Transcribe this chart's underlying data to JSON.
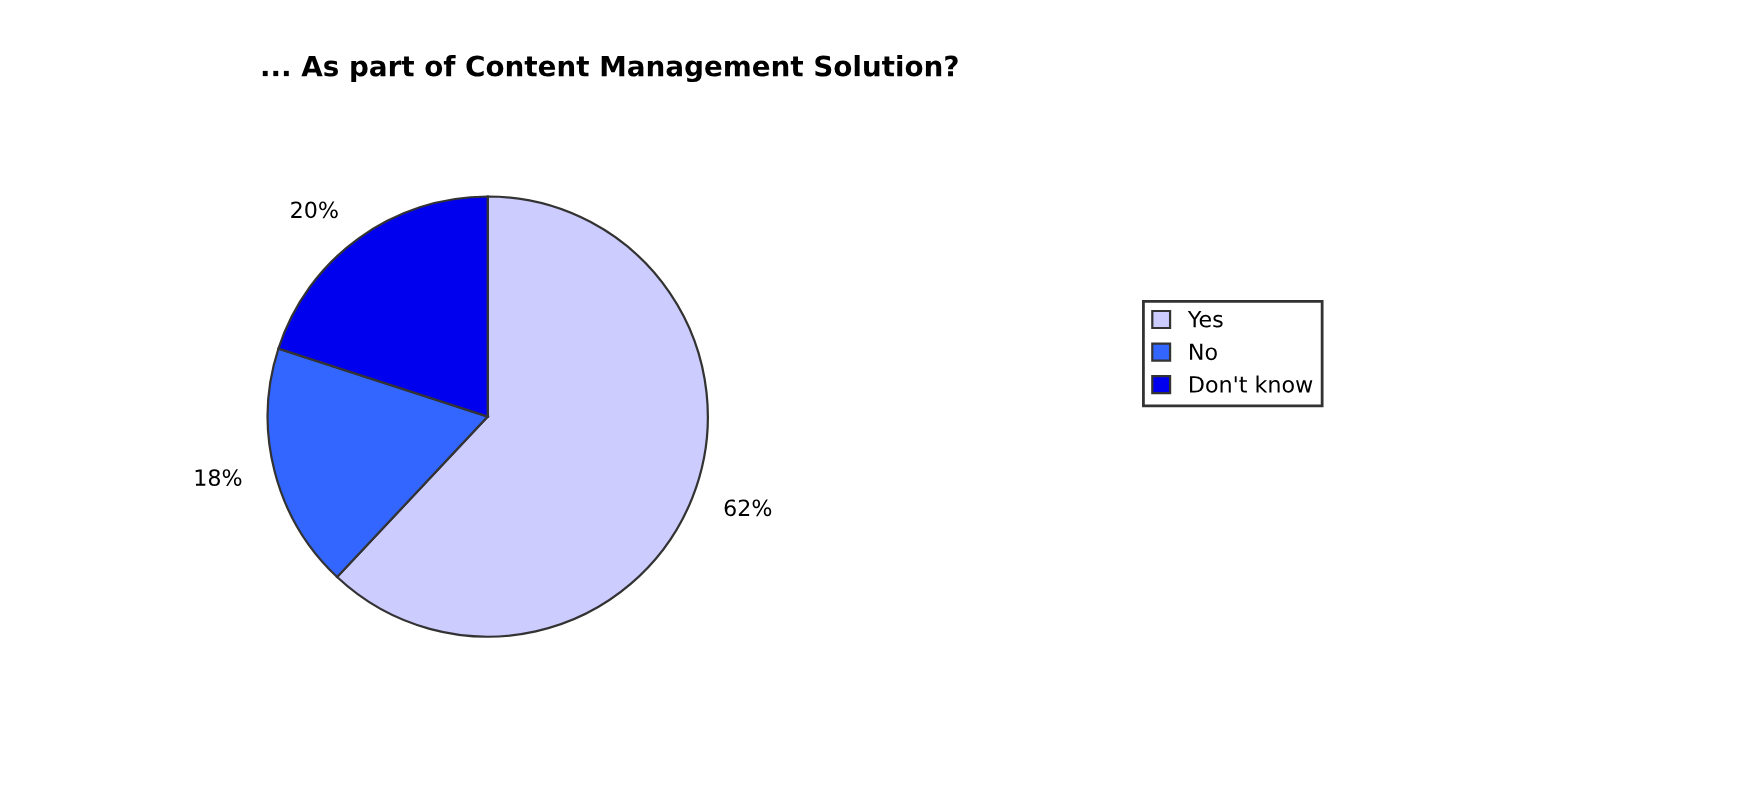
{
  "chart_data": {
    "type": "pie",
    "title": "... As part of Content Management Solution?",
    "categories": [
      "Yes",
      "No",
      "Don't know"
    ],
    "values": [
      62,
      18,
      20
    ],
    "colors": [
      "#ccccff",
      "#3366ff",
      "#0000ee"
    ],
    "value_labels": [
      "62%",
      "18%",
      "20%"
    ],
    "legend": "right"
  }
}
